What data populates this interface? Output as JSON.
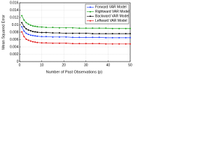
{
  "chart_data": {
    "type": "line",
    "xlabel": "Number of Past Observations (p)",
    "ylabel": "Mean Squared Error",
    "x": [
      1,
      2,
      3,
      4,
      5,
      6,
      7,
      8,
      10,
      12,
      15,
      18,
      21,
      24,
      27,
      30,
      33,
      36,
      39,
      42,
      45,
      48,
      50
    ],
    "series": [
      {
        "name": "Forward VAR Model",
        "color": "#1f3fff",
        "values": [
          0.0095,
          0.0083,
          0.0077,
          0.0074,
          0.0072,
          0.0071,
          0.007,
          0.0069,
          0.0068,
          0.0068,
          0.0067,
          0.0067,
          0.0067,
          0.0066,
          0.0066,
          0.0066,
          0.0066,
          0.0066,
          0.0065,
          0.0065,
          0.0065,
          0.0065,
          0.0065
        ]
      },
      {
        "name": "Rightward VAR Model",
        "color": "#1aa01a",
        "values": [
          0.0125,
          0.0113,
          0.0106,
          0.0102,
          0.0099,
          0.0097,
          0.0096,
          0.0095,
          0.0094,
          0.0093,
          0.0093,
          0.0092,
          0.0092,
          0.0092,
          0.0091,
          0.0091,
          0.0091,
          0.0091,
          0.0091,
          0.009,
          0.009,
          0.009,
          0.009
        ]
      },
      {
        "name": "Backward VAR Model",
        "color": "#000000",
        "values": [
          0.0106,
          0.0095,
          0.0089,
          0.0086,
          0.0084,
          0.0082,
          0.0081,
          0.008,
          0.0079,
          0.0079,
          0.0078,
          0.0078,
          0.0077,
          0.0077,
          0.0077,
          0.0077,
          0.0076,
          0.0076,
          0.0076,
          0.0076,
          0.0076,
          0.0076,
          0.0076
        ]
      },
      {
        "name": "Leftward VAR Model",
        "color": "#e01010",
        "values": [
          0.0081,
          0.0068,
          0.0061,
          0.0058,
          0.0056,
          0.0054,
          0.0053,
          0.0052,
          0.0051,
          0.0051,
          0.005,
          0.005,
          0.005,
          0.0049,
          0.0049,
          0.0049,
          0.0049,
          0.0049,
          0.0048,
          0.0048,
          0.0048,
          0.0048,
          0.0048
        ]
      }
    ],
    "xlim": [
      0,
      50
    ],
    "xticks": [
      0,
      10,
      20,
      30,
      40,
      50
    ],
    "ylim": [
      0,
      0.016
    ],
    "yticks": [
      0,
      0.002,
      0.004,
      0.006,
      0.008,
      0.01,
      0.012,
      0.014,
      0.016
    ],
    "grid": true,
    "legend": "upper right"
  }
}
